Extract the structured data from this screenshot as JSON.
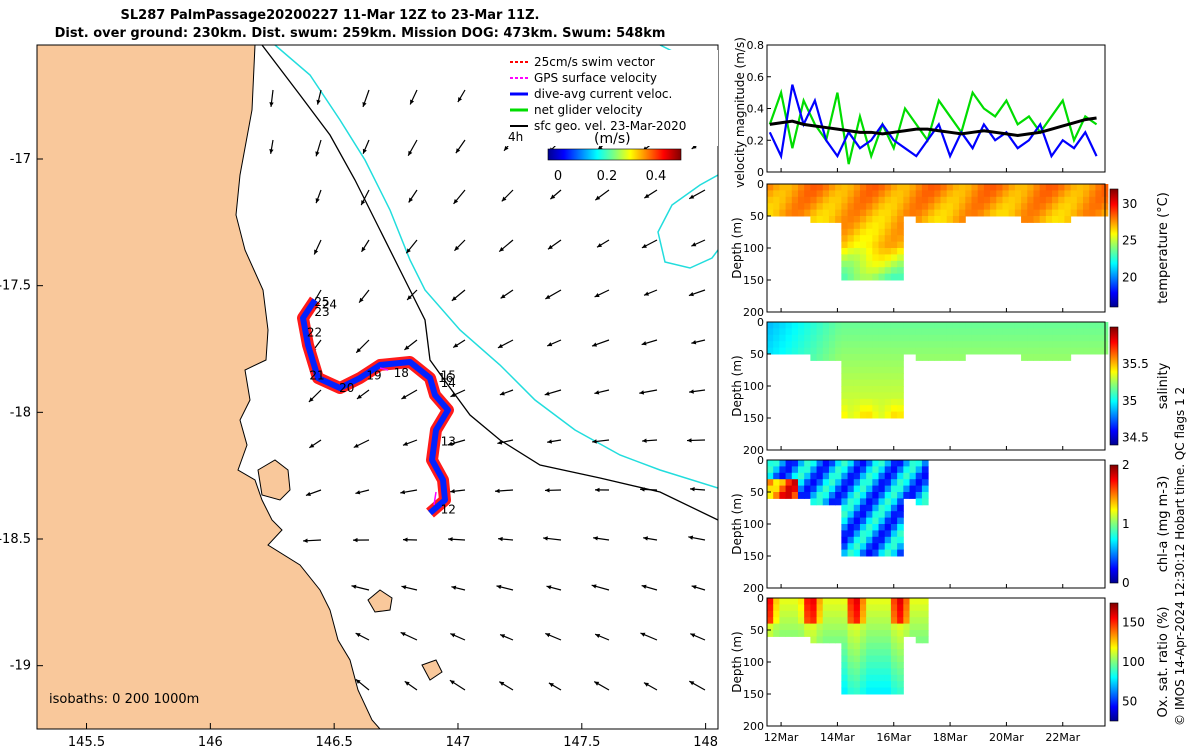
{
  "title": {
    "line1": "SL287 PalmPassage20200227 11-Mar 12Z to 23-Mar 11Z.",
    "line2": "Dist. over ground: 230km. Dist. swum: 259km. Mission DOG: 473km. Swum: 548km"
  },
  "map": {
    "x_ticks": [
      "145.5",
      "146",
      "146.5",
      "147",
      "147.5",
      "148"
    ],
    "y_ticks": [
      "-17",
      "-17.5",
      "-18",
      "-18.5",
      "-19"
    ],
    "xlim": [
      145.3,
      148.05
    ],
    "ylim": [
      -19.25,
      -16.55
    ],
    "isobaths_label": "isobaths: 0   200  1000m",
    "legend": [
      {
        "label": "25cm/s swim vector",
        "color": "#ff0000"
      },
      {
        "label": "GPS surface velocity",
        "color": "#ff00ff"
      },
      {
        "label": "dive-avg current veloc.",
        "color": "#0000ff"
      },
      {
        "label": "net glider velocity",
        "color": "#00dd00"
      },
      {
        "label": "sfc geo. vel. 23-Mar-2020",
        "color": "#000000"
      }
    ],
    "legend_scale_label": "4h",
    "colorbar_title": "(m/s)",
    "colorbar_ticks": [
      "0",
      "0.2",
      "0.4"
    ],
    "day_labels": [
      {
        "text": "25",
        "lon": 146.42,
        "lat": -17.58
      },
      {
        "text": "24",
        "lon": 146.45,
        "lat": -17.59
      },
      {
        "text": "23",
        "lon": 146.42,
        "lat": -17.62
      },
      {
        "text": "22",
        "lon": 146.39,
        "lat": -17.7
      },
      {
        "text": "21",
        "lon": 146.4,
        "lat": -17.87
      },
      {
        "text": "20",
        "lon": 146.52,
        "lat": -17.92
      },
      {
        "text": "19",
        "lon": 146.63,
        "lat": -17.87
      },
      {
        "text": "18",
        "lon": 146.74,
        "lat": -17.86
      },
      {
        "text": "15",
        "lon": 146.93,
        "lat": -17.87
      },
      {
        "text": "16",
        "lon": 146.92,
        "lat": -17.88
      },
      {
        "text": "14",
        "lon": 146.93,
        "lat": -17.9
      },
      {
        "text": "13",
        "lon": 146.93,
        "lat": -18.13
      },
      {
        "text": "12",
        "lon": 146.93,
        "lat": -18.4
      }
    ]
  },
  "chart_data": [
    {
      "type": "line",
      "title": "velocity magnitude",
      "ylabel": "velocity magnitude (m/s)",
      "ylim": [
        0,
        0.8
      ],
      "y_ticks": [
        "0",
        "0.2",
        "0.4",
        "0.6",
        "0.8"
      ],
      "series": [
        {
          "name": "net glider velocity",
          "color": "#00dd00",
          "x": [
            11.6,
            12.0,
            12.4,
            12.8,
            13.2,
            13.6,
            14.0,
            14.4,
            14.8,
            15.2,
            15.6,
            16.0,
            16.4,
            16.8,
            17.2,
            17.6,
            18.0,
            18.4,
            18.8,
            19.2,
            19.6,
            20.0,
            20.4,
            20.8,
            21.2,
            21.6,
            22.0,
            22.4,
            22.8,
            23.2
          ],
          "values": [
            0.3,
            0.5,
            0.15,
            0.45,
            0.3,
            0.2,
            0.5,
            0.05,
            0.35,
            0.1,
            0.3,
            0.15,
            0.4,
            0.3,
            0.2,
            0.45,
            0.35,
            0.25,
            0.5,
            0.4,
            0.35,
            0.45,
            0.3,
            0.35,
            0.25,
            0.35,
            0.45,
            0.2,
            0.35,
            0.3
          ]
        },
        {
          "name": "dive-avg current veloc.",
          "color": "#0000ff",
          "x": [
            11.6,
            12.0,
            12.4,
            12.8,
            13.2,
            13.6,
            14.0,
            14.4,
            14.8,
            15.2,
            15.6,
            16.0,
            16.4,
            16.8,
            17.2,
            17.6,
            18.0,
            18.4,
            18.8,
            19.2,
            19.6,
            20.0,
            20.4,
            20.8,
            21.2,
            21.6,
            22.0,
            22.4,
            22.8,
            23.2
          ],
          "values": [
            0.25,
            0.1,
            0.55,
            0.3,
            0.45,
            0.2,
            0.1,
            0.25,
            0.15,
            0.2,
            0.3,
            0.2,
            0.15,
            0.1,
            0.2,
            0.3,
            0.1,
            0.25,
            0.15,
            0.3,
            0.2,
            0.25,
            0.15,
            0.2,
            0.3,
            0.1,
            0.2,
            0.15,
            0.25,
            0.1
          ]
        },
        {
          "name": "sfc geo. vel.",
          "color": "#000000",
          "x": [
            11.6,
            12.0,
            12.4,
            12.8,
            13.2,
            13.6,
            14.0,
            14.4,
            14.8,
            15.2,
            15.6,
            16.0,
            16.4,
            16.8,
            17.2,
            17.6,
            18.0,
            18.4,
            18.8,
            19.2,
            19.6,
            20.0,
            20.4,
            20.8,
            21.2,
            21.6,
            22.0,
            22.4,
            22.8,
            23.2
          ],
          "values": [
            0.3,
            0.31,
            0.32,
            0.3,
            0.29,
            0.28,
            0.27,
            0.26,
            0.25,
            0.25,
            0.24,
            0.25,
            0.26,
            0.27,
            0.27,
            0.26,
            0.25,
            0.24,
            0.25,
            0.26,
            0.25,
            0.24,
            0.23,
            0.24,
            0.25,
            0.27,
            0.29,
            0.31,
            0.33,
            0.34
          ]
        }
      ]
    },
    {
      "type": "heatmap",
      "variable": "temperature",
      "clabel": "temperature (°C)",
      "clim": [
        16,
        32
      ],
      "c_ticks": [
        "20",
        "25",
        "30"
      ],
      "c_tick_values": [
        20,
        25,
        30
      ],
      "ylabel": "Depth (m)",
      "ylim": [
        0,
        200
      ],
      "y_ticks": [
        "0",
        "50",
        "100",
        "150",
        "200"
      ],
      "data_end_day": 23.5,
      "deep_section": [
        14.0,
        16.2
      ],
      "max_depth": 150,
      "shallow_depth": 50
    },
    {
      "type": "heatmap",
      "variable": "salinity",
      "clabel": "salinity",
      "clim": [
        34.4,
        36.0
      ],
      "c_ticks": [
        "34.5",
        "35",
        "35.5"
      ],
      "c_tick_values": [
        34.5,
        35.0,
        35.5
      ],
      "ylabel": "Depth (m)",
      "ylim": [
        0,
        200
      ],
      "y_ticks": [
        "0",
        "50",
        "100",
        "150",
        "200"
      ],
      "data_end_day": 23.5,
      "deep_section": [
        14.0,
        16.2
      ],
      "max_depth": 150,
      "shallow_depth": 50
    },
    {
      "type": "heatmap",
      "variable": "chl-a",
      "clabel": "chl-a (mg m-3)",
      "clim": [
        0,
        2
      ],
      "c_ticks": [
        "0",
        "1",
        "2"
      ],
      "c_tick_values": [
        0,
        1,
        2
      ],
      "ylabel": "Depth (m)",
      "ylim": [
        0,
        200
      ],
      "y_ticks": [
        "0",
        "50",
        "100",
        "150",
        "200"
      ],
      "data_end_day": 17.2,
      "deep_section": [
        14.0,
        16.2
      ],
      "max_depth": 150,
      "shallow_depth": 60
    },
    {
      "type": "heatmap",
      "variable": "oxygen",
      "clabel": "Ox. sat. ratio (%)",
      "clim": [
        25,
        175
      ],
      "c_ticks": [
        "50",
        "100",
        "150"
      ],
      "c_tick_values": [
        50,
        100,
        150
      ],
      "ylabel": "Depth (m)",
      "ylim": [
        0,
        200
      ],
      "y_ticks": [
        "0",
        "50",
        "100",
        "150",
        "200"
      ],
      "data_end_day": 17.2,
      "deep_section": [
        14.0,
        16.2
      ],
      "max_depth": 150,
      "shallow_depth": 60
    }
  ],
  "time_axis": {
    "xlim": [
      11.5,
      23.5
    ],
    "tick_days": [
      12,
      14,
      16,
      18,
      20,
      22
    ],
    "tick_labels": [
      "12Mar",
      "14Mar",
      "16Mar",
      "18Mar",
      "20Mar",
      "22Mar"
    ]
  },
  "side_note": "© IMOS 14-Apr-2024 12:30:12 Hobart time. QC flags 1  2"
}
